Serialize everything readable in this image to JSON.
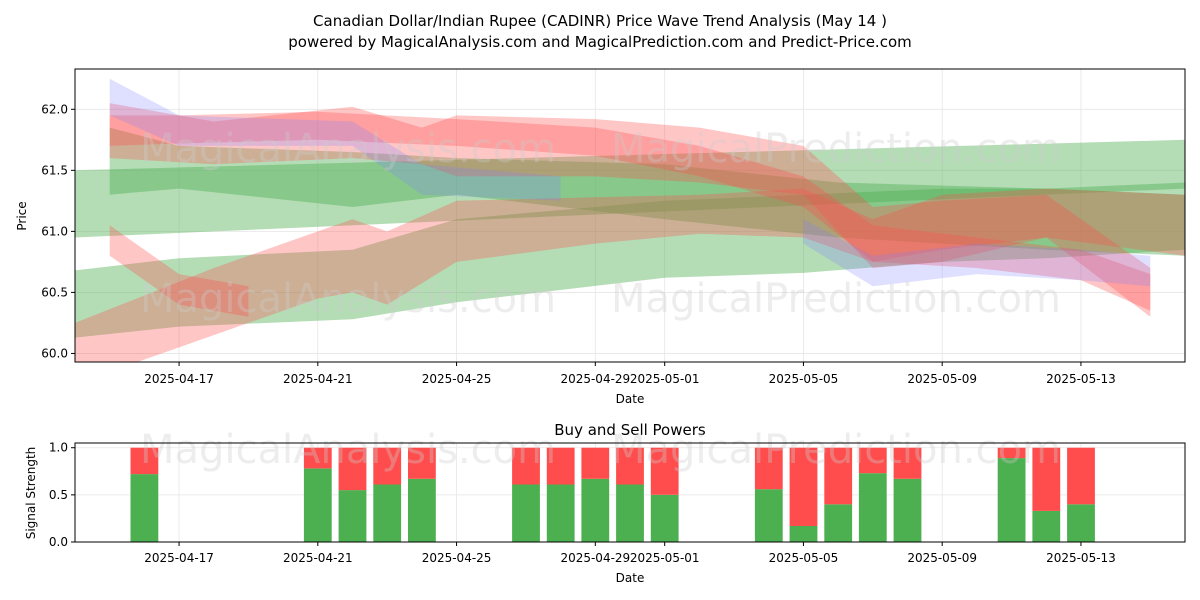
{
  "title_line1": "Canadian Dollar/Indian Rupee (CADINR) Price Wave Trend Analysis (May 14 )",
  "title_line2": "powered by MagicalAnalysis.com and MagicalPrediction.com and Predict-Price.com",
  "watermarks": [
    "MagicalAnalysis.com",
    "MagicalPrediction.com"
  ],
  "colors": {
    "buy": "#4caf50",
    "sell": "#ff4d4d",
    "green_band": "#4caf50",
    "red_band": "#ff4d4d",
    "blue_band": "#8080ff"
  },
  "chart_data": [
    {
      "type": "area",
      "xlabel": "Date",
      "ylabel": "Price",
      "ylim": [
        59.93,
        62.33
      ],
      "xlim": [
        "2025-04-14",
        "2025-05-16"
      ],
      "x_ticks": [
        "2025-04-17",
        "2025-04-21",
        "2025-04-25",
        "2025-04-29",
        "2025-05-01",
        "2025-05-05",
        "2025-05-09",
        "2025-05-13"
      ],
      "y_ticks": [
        60.0,
        60.5,
        61.0,
        61.5,
        62.0
      ],
      "grid": true,
      "bands": [
        {
          "color": "green",
          "x": [
            "2025-04-14",
            "2025-05-16"
          ],
          "upper": [
            61.5,
            61.75
          ],
          "lower": [
            60.95,
            61.35
          ]
        },
        {
          "color": "green",
          "x": [
            "2025-04-14",
            "2025-04-17",
            "2025-04-22",
            "2025-04-25",
            "2025-05-01",
            "2025-05-05",
            "2025-05-09",
            "2025-05-12",
            "2025-05-16"
          ],
          "upper": [
            60.68,
            60.78,
            60.85,
            61.1,
            61.25,
            61.3,
            61.35,
            61.35,
            61.4
          ],
          "lower": [
            60.13,
            60.22,
            60.28,
            60.42,
            60.62,
            60.66,
            60.75,
            60.78,
            60.85
          ]
        },
        {
          "color": "green",
          "x": [
            "2025-04-15",
            "2025-04-17",
            "2025-04-22",
            "2025-04-25",
            "2025-05-01",
            "2025-05-06",
            "2025-05-12",
            "2025-05-16"
          ],
          "upper": [
            61.85,
            61.7,
            61.65,
            61.6,
            61.55,
            61.4,
            61.35,
            61.3
          ],
          "lower": [
            61.3,
            61.35,
            61.2,
            61.3,
            61.1,
            60.95,
            60.85,
            60.8
          ]
        },
        {
          "color": "red",
          "x": [
            "2025-04-14",
            "2025-04-18",
            "2025-04-21",
            "2025-04-22",
            "2025-04-23",
            "2025-04-25",
            "2025-04-29",
            "2025-05-02",
            "2025-05-05",
            "2025-05-07",
            "2025-05-09",
            "2025-05-12",
            "2025-05-16"
          ],
          "upper": [
            60.25,
            60.7,
            61.0,
            61.1,
            61.0,
            61.25,
            61.28,
            61.3,
            61.35,
            61.1,
            61.3,
            61.35,
            61.3
          ],
          "lower": [
            59.75,
            60.15,
            60.45,
            60.5,
            60.4,
            60.75,
            60.9,
            60.98,
            60.95,
            60.75,
            60.85,
            60.95,
            60.8
          ]
        },
        {
          "color": "red",
          "x": [
            "2025-04-15",
            "2025-04-17",
            "2025-04-21",
            "2025-04-25",
            "2025-04-29",
            "2025-05-02",
            "2025-05-05",
            "2025-05-07",
            "2025-05-10",
            "2025-05-13",
            "2025-05-15"
          ],
          "upper": [
            61.95,
            61.95,
            61.98,
            61.92,
            61.85,
            61.7,
            61.45,
            61.05,
            60.95,
            60.85,
            60.65
          ],
          "lower": [
            61.7,
            61.72,
            61.75,
            61.7,
            61.62,
            61.45,
            61.2,
            60.75,
            60.7,
            60.6,
            60.35
          ]
        },
        {
          "color": "red",
          "x": [
            "2025-04-15",
            "2025-04-18",
            "2025-04-22",
            "2025-04-24",
            "2025-04-25",
            "2025-04-29",
            "2025-05-02",
            "2025-05-05",
            "2025-05-07",
            "2025-05-09",
            "2025-05-12",
            "2025-05-15"
          ],
          "upper": [
            62.05,
            61.9,
            62.02,
            61.85,
            61.95,
            61.92,
            61.85,
            61.7,
            61.2,
            61.25,
            61.3,
            60.7
          ],
          "lower": [
            61.6,
            61.55,
            61.6,
            61.55,
            61.45,
            61.45,
            61.4,
            61.3,
            60.7,
            60.75,
            60.95,
            60.3
          ]
        },
        {
          "color": "red",
          "x": [
            "2025-04-15",
            "2025-04-17",
            "2025-04-19"
          ],
          "upper": [
            61.05,
            60.65,
            60.55
          ],
          "lower": [
            60.8,
            60.4,
            60.3
          ]
        },
        {
          "color": "blue",
          "x": [
            "2025-04-15",
            "2025-04-17",
            "2025-04-22",
            "2025-04-24",
            "2025-04-28"
          ],
          "upper": [
            62.25,
            61.95,
            61.9,
            61.55,
            61.45
          ],
          "lower": [
            61.95,
            61.7,
            61.7,
            61.3,
            61.25
          ]
        },
        {
          "color": "blue",
          "x": [
            "2025-05-05",
            "2025-05-07",
            "2025-05-10",
            "2025-05-13",
            "2025-05-15"
          ],
          "upper": [
            61.1,
            60.8,
            60.9,
            60.85,
            60.8
          ],
          "lower": [
            60.9,
            60.55,
            60.65,
            60.6,
            60.55
          ]
        }
      ]
    },
    {
      "type": "bar",
      "title": "Buy and Sell Powers",
      "xlabel": "Date",
      "ylabel": "Signal Strength",
      "ylim": [
        0,
        1.05
      ],
      "y_ticks": [
        0.0,
        0.5,
        1.0
      ],
      "x_ticks": [
        "2025-04-17",
        "2025-04-21",
        "2025-04-25",
        "2025-04-29",
        "2025-05-01",
        "2025-05-05",
        "2025-05-09",
        "2025-05-13"
      ],
      "categories": [
        "2025-04-16",
        "2025-04-21",
        "2025-04-22",
        "2025-04-23",
        "2025-04-24",
        "2025-04-27",
        "2025-04-28",
        "2025-04-29",
        "2025-04-30",
        "2025-05-01",
        "2025-05-04",
        "2025-05-05",
        "2025-05-06",
        "2025-05-07",
        "2025-05-08",
        "2025-05-11",
        "2025-05-12",
        "2025-05-13"
      ],
      "series": [
        {
          "name": "Buy",
          "values": [
            0.72,
            0.78,
            0.55,
            0.61,
            0.67,
            0.61,
            0.61,
            0.67,
            0.61,
            0.5,
            0.56,
            0.17,
            0.4,
            0.73,
            0.67,
            0.89,
            0.33,
            0.4
          ]
        },
        {
          "name": "Sell",
          "values": [
            0.28,
            0.22,
            0.45,
            0.39,
            0.33,
            0.39,
            0.39,
            0.33,
            0.39,
            0.5,
            0.44,
            0.83,
            0.6,
            0.27,
            0.33,
            0.11,
            0.67,
            0.6
          ]
        }
      ]
    }
  ]
}
